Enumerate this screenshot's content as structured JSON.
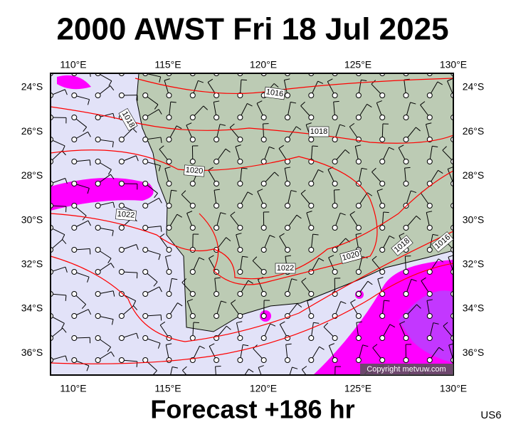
{
  "title": "2000 AWST Fri 18 Jul 2025",
  "footer": "Forecast +186 hr",
  "code": "US6",
  "copyright": "Copyright metvuw.com",
  "longitude_labels": [
    "110°E",
    "115°E",
    "120°E",
    "125°E",
    "130°E"
  ],
  "latitude_labels": [
    "24°S",
    "26°S",
    "28°S",
    "30°S",
    "32°S",
    "34°S",
    "36°S"
  ],
  "isobar_labels": [
    "1016",
    "1018",
    "1018",
    "1020",
    "1022",
    "1022",
    "1020",
    "1018",
    "1016"
  ]
}
